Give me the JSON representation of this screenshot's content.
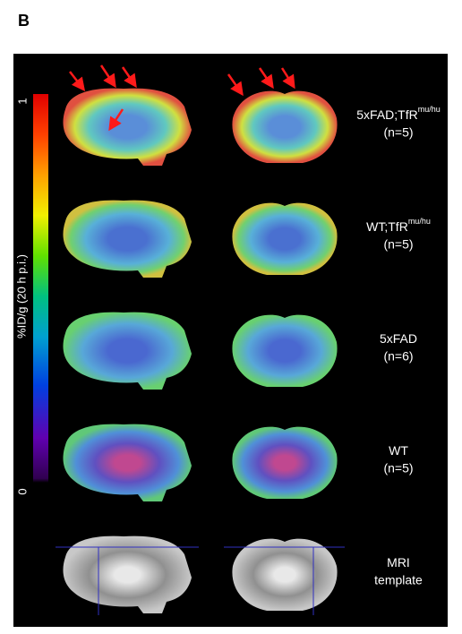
{
  "panel_label": "B",
  "colorbar": {
    "title": "%ID/g (20 h p.i.)",
    "range": [
      0,
      1
    ],
    "ticks": [
      0,
      1
    ]
  },
  "rows": [
    {
      "label": "5xFAD;TfR",
      "superscript": "mu/hu",
      "sublabel": "(n=5)"
    },
    {
      "label": "WT;TfR",
      "superscript": "mu/hu",
      "sublabel": "(n=5)"
    },
    {
      "label": "5xFAD",
      "sublabel": "(n=6)"
    },
    {
      "label": "WT",
      "sublabel": "(n=5)"
    },
    {
      "label": "MRI",
      "sublabel": "template"
    }
  ]
}
